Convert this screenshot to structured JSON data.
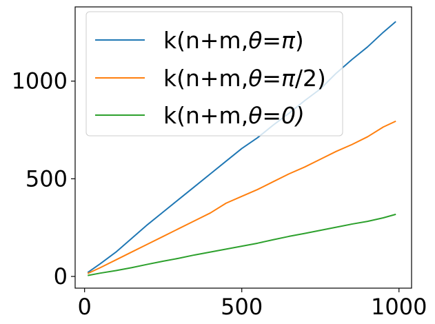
{
  "chart_data": {
    "type": "line",
    "title": "",
    "xlabel": "",
    "ylabel": "",
    "xlim": [
      -30,
      1040
    ],
    "ylim": [
      -60,
      1380
    ],
    "x_ticks": [
      0,
      500,
      1000
    ],
    "x_tick_labels": [
      "0",
      "500",
      "1000"
    ],
    "y_ticks": [
      0,
      500,
      1000
    ],
    "y_tick_labels": [
      "0",
      "500",
      "1000"
    ],
    "grid": false,
    "legend_position": "top-left",
    "x": [
      10,
      50,
      100,
      150,
      200,
      250,
      300,
      350,
      400,
      450,
      500,
      550,
      600,
      650,
      700,
      750,
      800,
      850,
      900,
      950,
      990
    ],
    "series": [
      {
        "name": "k(n+m,θ=π)",
        "legend_parts": [
          "k(n+m,",
          "θ",
          "=",
          "π",
          ")"
        ],
        "color": "#1f77b4",
        "values": [
          20,
          65,
          125,
          195,
          265,
          330,
          395,
          460,
          525,
          590,
          655,
          710,
          775,
          835,
          900,
          960,
          1040,
          1110,
          1175,
          1250,
          1305
        ]
      },
      {
        "name": "k(n+m,θ=π/2)",
        "legend_parts": [
          "k(n+m,",
          "θ",
          "=",
          "π",
          "/2)"
        ],
        "color": "#ff7f0e",
        "values": [
          15,
          45,
          85,
          125,
          165,
          205,
          245,
          285,
          325,
          375,
          410,
          445,
          485,
          525,
          560,
          600,
          640,
          675,
          715,
          765,
          795
        ]
      },
      {
        "name": "k(n+m,θ=0)",
        "legend_parts": [
          "k(n+m,",
          "θ",
          "=",
          "0)",
          ""
        ],
        "color": "#2ca02c",
        "values": [
          5,
          17,
          30,
          45,
          62,
          78,
          93,
          110,
          125,
          140,
          155,
          170,
          188,
          205,
          220,
          236,
          252,
          268,
          282,
          300,
          318
        ]
      }
    ]
  }
}
